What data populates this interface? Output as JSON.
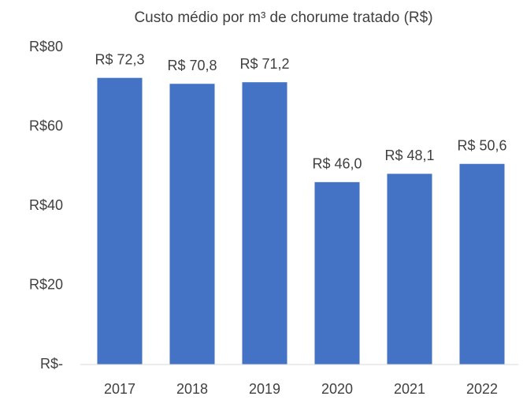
{
  "chart_data": {
    "type": "bar",
    "title": "Custo médio por m³ de chorume tratado (R$)",
    "categories": [
      "2017",
      "2018",
      "2019",
      "2020",
      "2021",
      "2022"
    ],
    "values": [
      72.3,
      70.8,
      71.2,
      46.0,
      48.1,
      50.6
    ],
    "value_labels": [
      "R$ 72,3",
      "R$ 70,8",
      "R$ 71,2",
      "R$ 46,0",
      "R$ 48,1",
      "R$ 50,6"
    ],
    "color": "#4472c4",
    "ylim": [
      0,
      80
    ],
    "yticks": [
      {
        "value": 0,
        "label": "R$-"
      },
      {
        "value": 20,
        "label": "R$20"
      },
      {
        "value": 40,
        "label": "R$40"
      },
      {
        "value": 60,
        "label": "R$60"
      },
      {
        "value": 80,
        "label": "R$80"
      }
    ],
    "grid": false
  }
}
